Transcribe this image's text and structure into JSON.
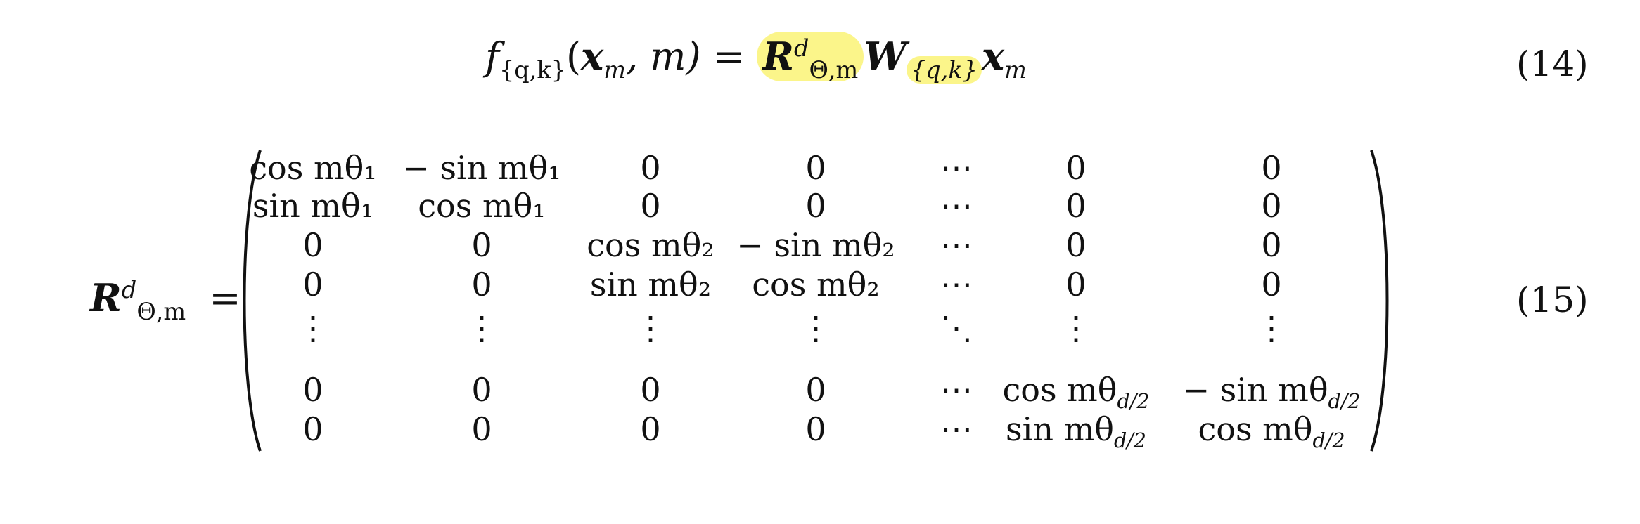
{
  "eq14": {
    "lhs_f": "f",
    "lhs_sub": "{q,k}",
    "lhs_args": "(",
    "x": "x",
    "x_sub": "m",
    "comma_m": ", m) = ",
    "R": "R",
    "R_sup": "d",
    "R_sub": "Θ,m",
    "W": "W",
    "W_sub": "{q,k}",
    "x2": "x",
    "x2_sub": "m",
    "number": "(14)"
  },
  "eq15": {
    "R": "R",
    "R_sup": "d",
    "R_sub": "Θ,m",
    "equals": "=",
    "number": "(15)",
    "rows": [
      [
        "cos mθ₁",
        "− sin mθ₁",
        "0",
        "0",
        "⋯",
        "0",
        "0"
      ],
      [
        "sin mθ₁",
        "cos mθ₁",
        "0",
        "0",
        "⋯",
        "0",
        "0"
      ],
      [
        "0",
        "0",
        "cos mθ₂",
        "− sin mθ₂",
        "⋯",
        "0",
        "0"
      ],
      [
        "0",
        "0",
        "sin mθ₂",
        "cos mθ₂",
        "⋯",
        "0",
        "0"
      ],
      [
        "⋮",
        "⋮",
        "⋮",
        "⋮",
        "⋱",
        "⋮",
        "⋮"
      ],
      [
        "0",
        "0",
        "0",
        "0",
        "⋯",
        "cos mθ_{d/2}",
        "− sin mθ_{d/2}"
      ],
      [
        "0",
        "0",
        "0",
        "0",
        "⋯",
        "sin mθ_{d/2}",
        "cos mθ_{d/2}"
      ]
    ]
  },
  "colors": {
    "highlight": "#fbf58a",
    "text": "#111111"
  }
}
